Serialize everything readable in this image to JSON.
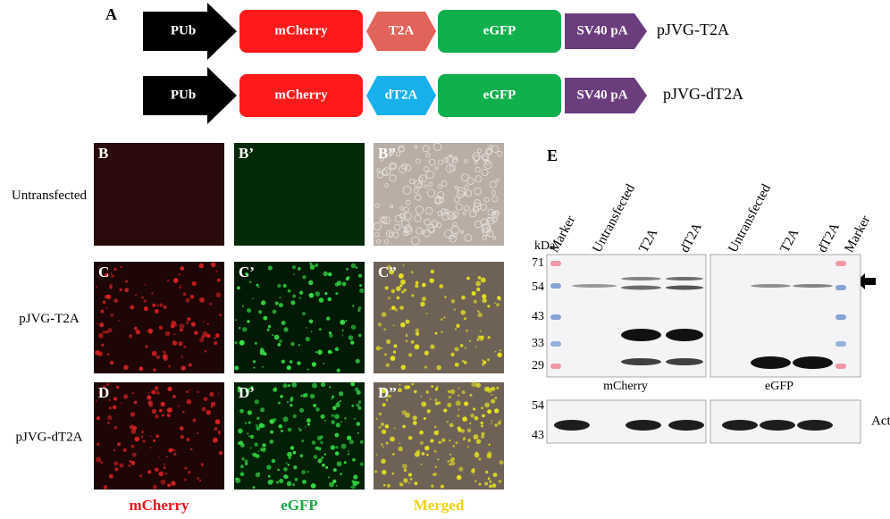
{
  "panel_a": {
    "label": "A",
    "constructs": [
      {
        "parts": [
          "PUb",
          "mCherry",
          "T2A",
          "eGFP",
          "SV40 pA"
        ],
        "name": "pJVG-T2A"
      },
      {
        "parts": [
          "PUb",
          "mCherry",
          "dT2A",
          "eGFP",
          "SV40 pA"
        ],
        "name": "pJVG-dT2A"
      }
    ]
  },
  "micrographs": {
    "panel_labels": [
      [
        "B",
        "B’",
        "B”"
      ],
      [
        "C",
        "C’",
        "C”"
      ],
      [
        "D",
        "D’",
        "D”"
      ]
    ],
    "row_labels": [
      "Untransfected",
      "pJVG-T2A",
      "pJVG-dT2A"
    ],
    "column_labels": [
      "mCherry",
      "eGFP",
      "Merged"
    ]
  },
  "panel_e": {
    "label": "E",
    "unit": "kDa",
    "lanes_left": [
      "Marker",
      "Untransfected",
      "T2A",
      "dT2A"
    ],
    "lanes_right": [
      "Untransfected",
      "T2A",
      "dT2A",
      "Marker"
    ],
    "markers_upper": [
      71,
      54,
      43,
      33,
      29
    ],
    "markers_lower": [
      54,
      43
    ],
    "blot_labels": [
      "mCherry",
      "eGFP"
    ],
    "loading_label": "Actin"
  }
}
